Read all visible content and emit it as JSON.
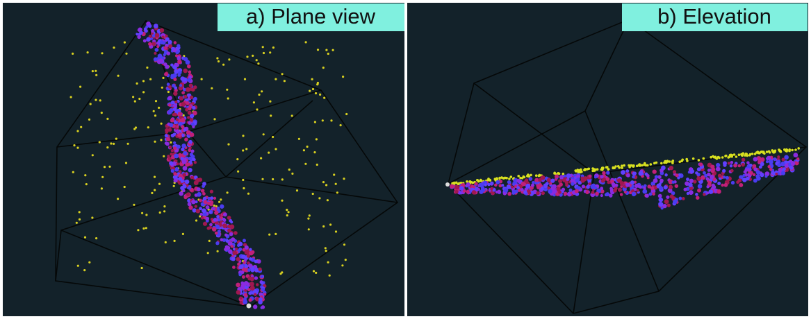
{
  "panels": [
    {
      "label": "a) Plane view"
    },
    {
      "label": "b) Elevation"
    }
  ]
}
